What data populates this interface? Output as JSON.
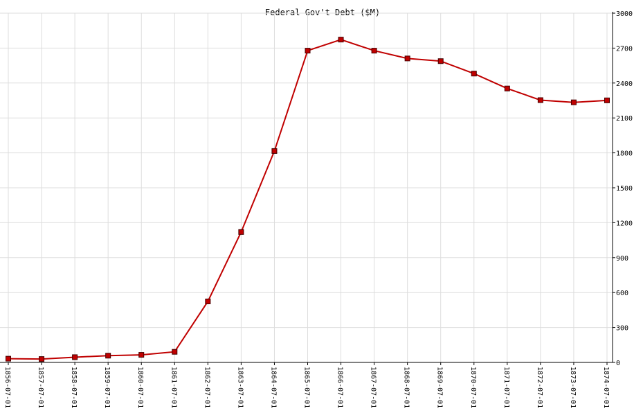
{
  "chart_data": {
    "type": "line",
    "title": "Federal Gov't Debt ($M)",
    "x": [
      "1856-07-01",
      "1857-07-01",
      "1858-07-01",
      "1859-07-01",
      "1860-07-01",
      "1861-07-01",
      "1862-07-01",
      "1863-07-01",
      "1864-07-01",
      "1865-07-01",
      "1866-07-01",
      "1867-07-01",
      "1868-07-01",
      "1869-07-01",
      "1870-07-01",
      "1871-07-01",
      "1872-07-01",
      "1873-07-01",
      "1874-07-01"
    ],
    "series": [
      {
        "color": "#c00000",
        "values": [
          32,
          29,
          45,
          58,
          65,
          91,
          524,
          1120,
          1816,
          2678,
          2773,
          2678,
          2611,
          2588,
          2481,
          2353,
          2253,
          2234,
          2251
        ]
      }
    ],
    "ylim": [
      0,
      3000
    ],
    "yticks": [
      0,
      300,
      600,
      900,
      1200,
      1500,
      1800,
      2100,
      2400,
      2700,
      3000
    ],
    "grid": true
  }
}
